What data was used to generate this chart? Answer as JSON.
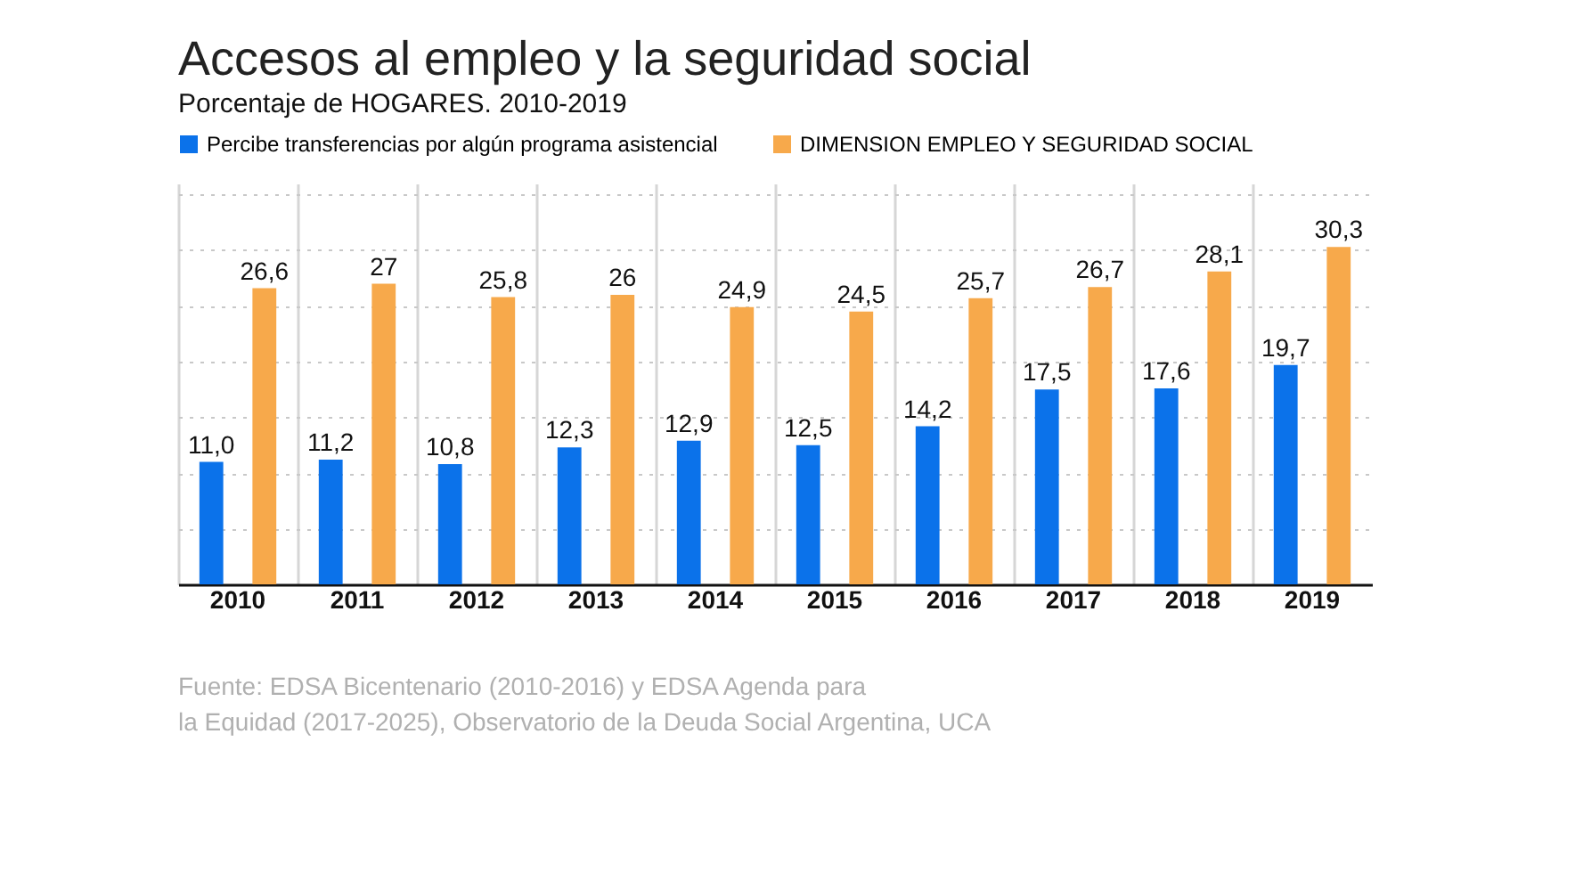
{
  "chart_data": {
    "type": "bar",
    "title": "Accesos al empleo y la seguridad social",
    "subtitle": "Porcentaje de HOGARES. 2010-2019",
    "categories": [
      "2010",
      "2011",
      "2012",
      "2013",
      "2014",
      "2015",
      "2016",
      "2017",
      "2018",
      "2019"
    ],
    "series": [
      {
        "name": "Percibe transferencias por algún programa asistencial",
        "color": "#0b72ea",
        "values": [
          11.0,
          11.2,
          10.8,
          12.3,
          12.9,
          12.5,
          14.2,
          17.5,
          17.6,
          19.7
        ],
        "value_labels": [
          "11,0",
          "11,2",
          "10,8",
          "12,3",
          "12,9",
          "12,5",
          "14,2",
          "17,5",
          "17,6",
          "19,7"
        ]
      },
      {
        "name": "DIMENSION EMPLEO Y SEGURIDAD SOCIAL",
        "color": "#f7a94b",
        "values": [
          26.6,
          27,
          25.8,
          26,
          24.9,
          24.5,
          25.7,
          26.7,
          28.1,
          30.3
        ],
        "value_labels": [
          "26,6",
          "27",
          "25,8",
          "26",
          "24,9",
          "24,5",
          "25,7",
          "26,7",
          "28,1",
          "30,3"
        ]
      }
    ],
    "ylim": [
      0,
      36
    ],
    "tick_labels": "x",
    "grid": true,
    "legend": "top left",
    "annotations": [
      "Fuente: EDSA Bicentenario (2010-2016) y  EDSA Agenda para",
      "la Equidad (2017-2025), Observatorio de la Deuda Social Argentina, UCA"
    ]
  }
}
